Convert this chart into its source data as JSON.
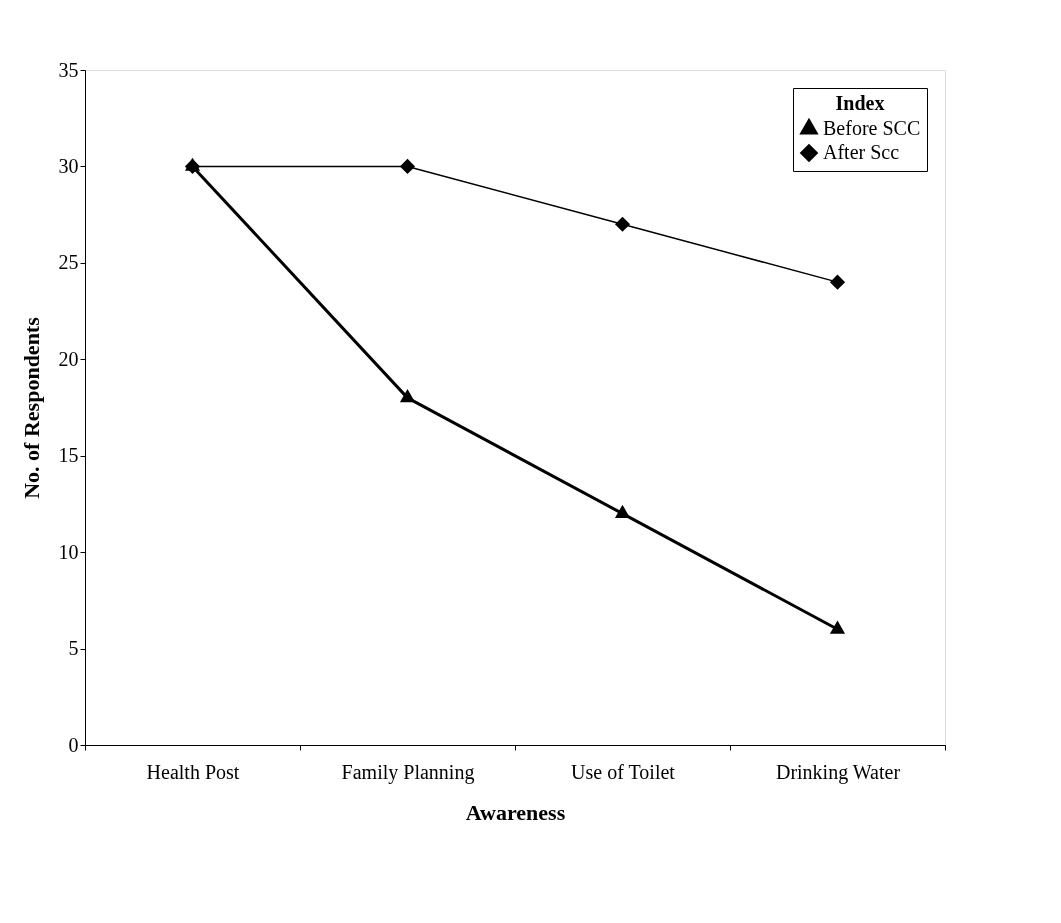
{
  "chart_data": {
    "type": "line",
    "xlabel": "Awareness",
    "ylabel": "No. of Respondents",
    "legend_title": "Index",
    "categories": [
      "Health Post",
      "Family Planning",
      "Use of Toilet",
      "Drinking Water"
    ],
    "series": [
      {
        "name": "Before SCC",
        "color": "#000000",
        "marker": "triangle",
        "values": [
          30,
          18,
          12,
          6
        ]
      },
      {
        "name": "After Scc",
        "color": "#000000",
        "marker": "diamond",
        "values": [
          30,
          30,
          27,
          24
        ]
      }
    ],
    "ylim": [
      0,
      35
    ],
    "yticks": [
      0,
      5,
      10,
      15,
      20,
      25,
      30,
      35
    ],
    "grid": false,
    "legend": "top right",
    "line_style": "solid"
  }
}
